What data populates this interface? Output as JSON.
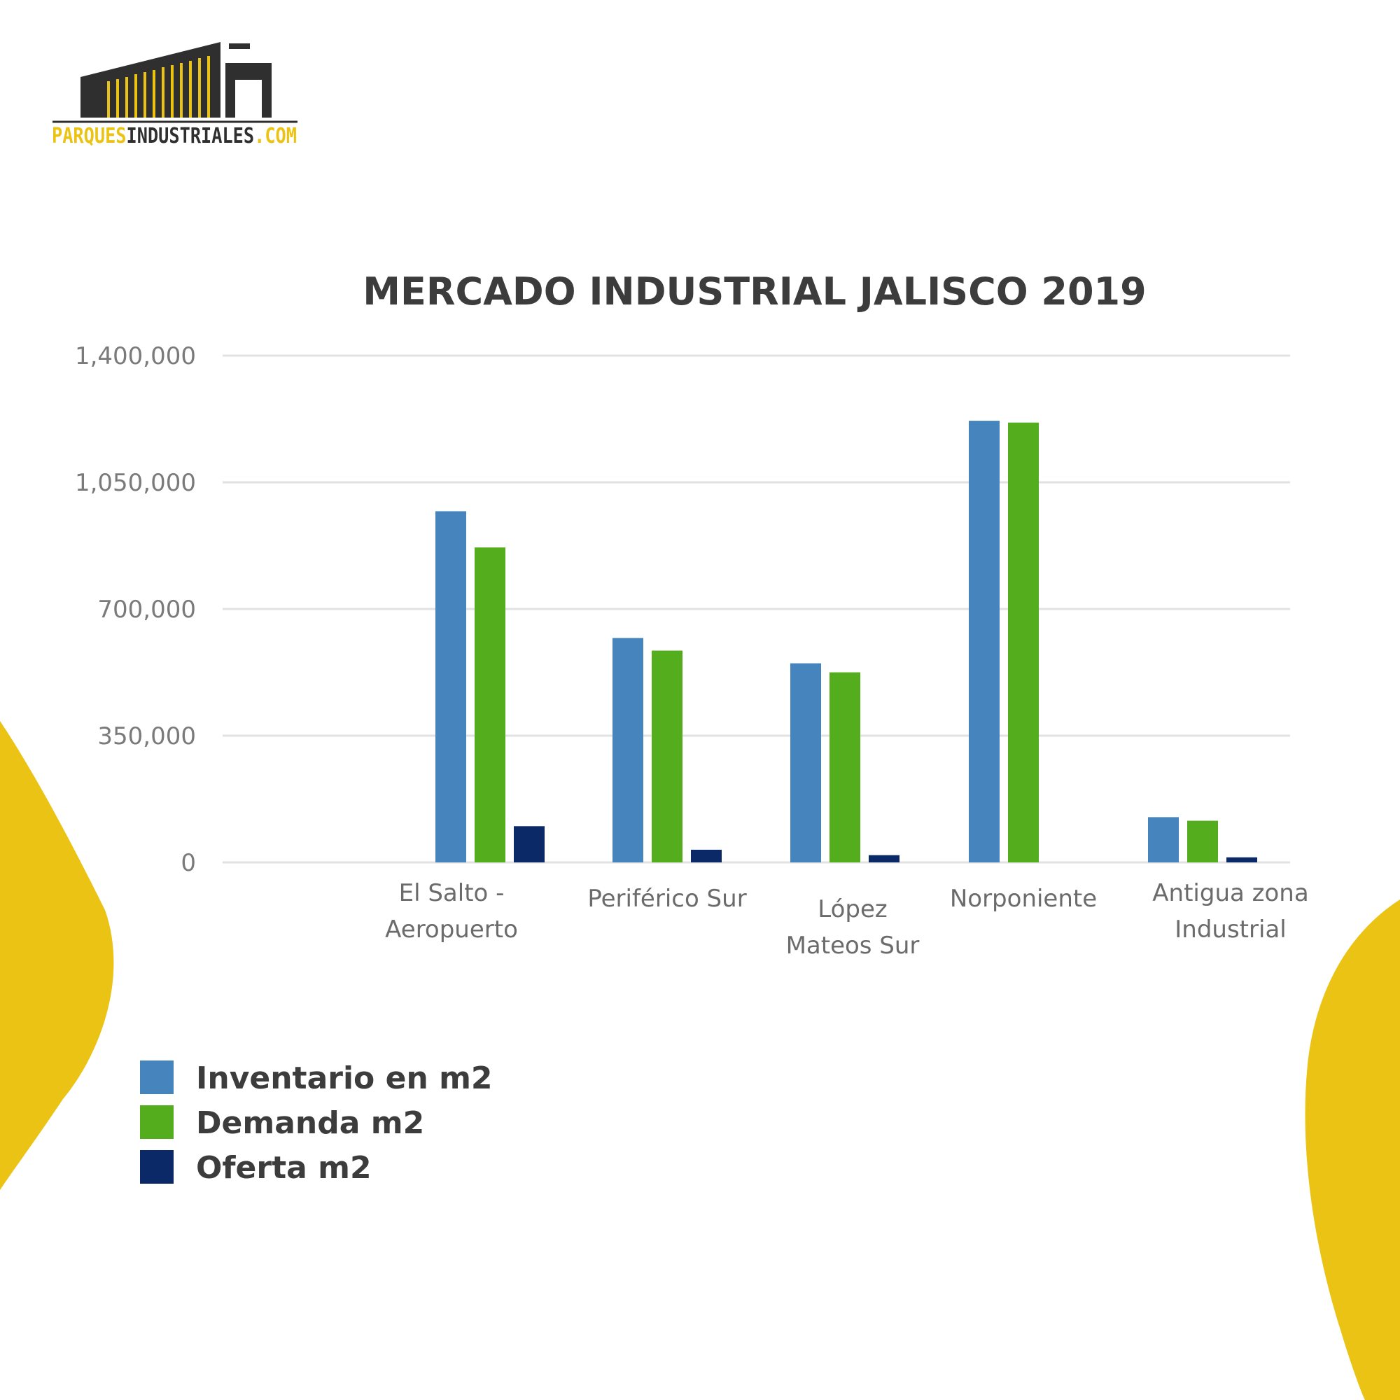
{
  "logo": {
    "text_a": "PARQUES",
    "text_b": "INDUSTRIALES",
    "text_c": ".COM"
  },
  "colors": {
    "yellow_accent": "#ebc314",
    "logo_dark": "#2f2f2f",
    "grid": "#e2e2e2"
  },
  "chart_data": {
    "type": "bar",
    "title": "MERCADO INDUSTRIAL JALISCO 2019",
    "xlabel": "",
    "ylabel": "",
    "ylim": [
      0,
      1400000
    ],
    "yticks": [
      0,
      350000,
      700000,
      1050000,
      1400000
    ],
    "ytick_labels": [
      "0",
      "350,000",
      "700,000",
      "1,050,000",
      "1,400,000"
    ],
    "grid": true,
    "legend_position": "bottom-left",
    "categories": [
      [
        "El Salto -",
        "Aeropuerto"
      ],
      [
        "Periférico Sur"
      ],
      [
        "López",
        "Mateos Sur"
      ],
      [
        "Norponiente"
      ],
      [
        "Antigua zona",
        "Industrial"
      ]
    ],
    "series": [
      {
        "name": "Inventario en m2",
        "color": "#4584bd",
        "values": [
          970000,
          620000,
          550000,
          1220000,
          125000
        ]
      },
      {
        "name": "Demanda m2",
        "color": "#53ad1c",
        "values": [
          870000,
          585000,
          525000,
          1215000,
          115000
        ]
      },
      {
        "name": "Oferta m2",
        "color": "#0b2867",
        "values": [
          100000,
          35000,
          20000,
          0,
          14000
        ]
      }
    ]
  }
}
